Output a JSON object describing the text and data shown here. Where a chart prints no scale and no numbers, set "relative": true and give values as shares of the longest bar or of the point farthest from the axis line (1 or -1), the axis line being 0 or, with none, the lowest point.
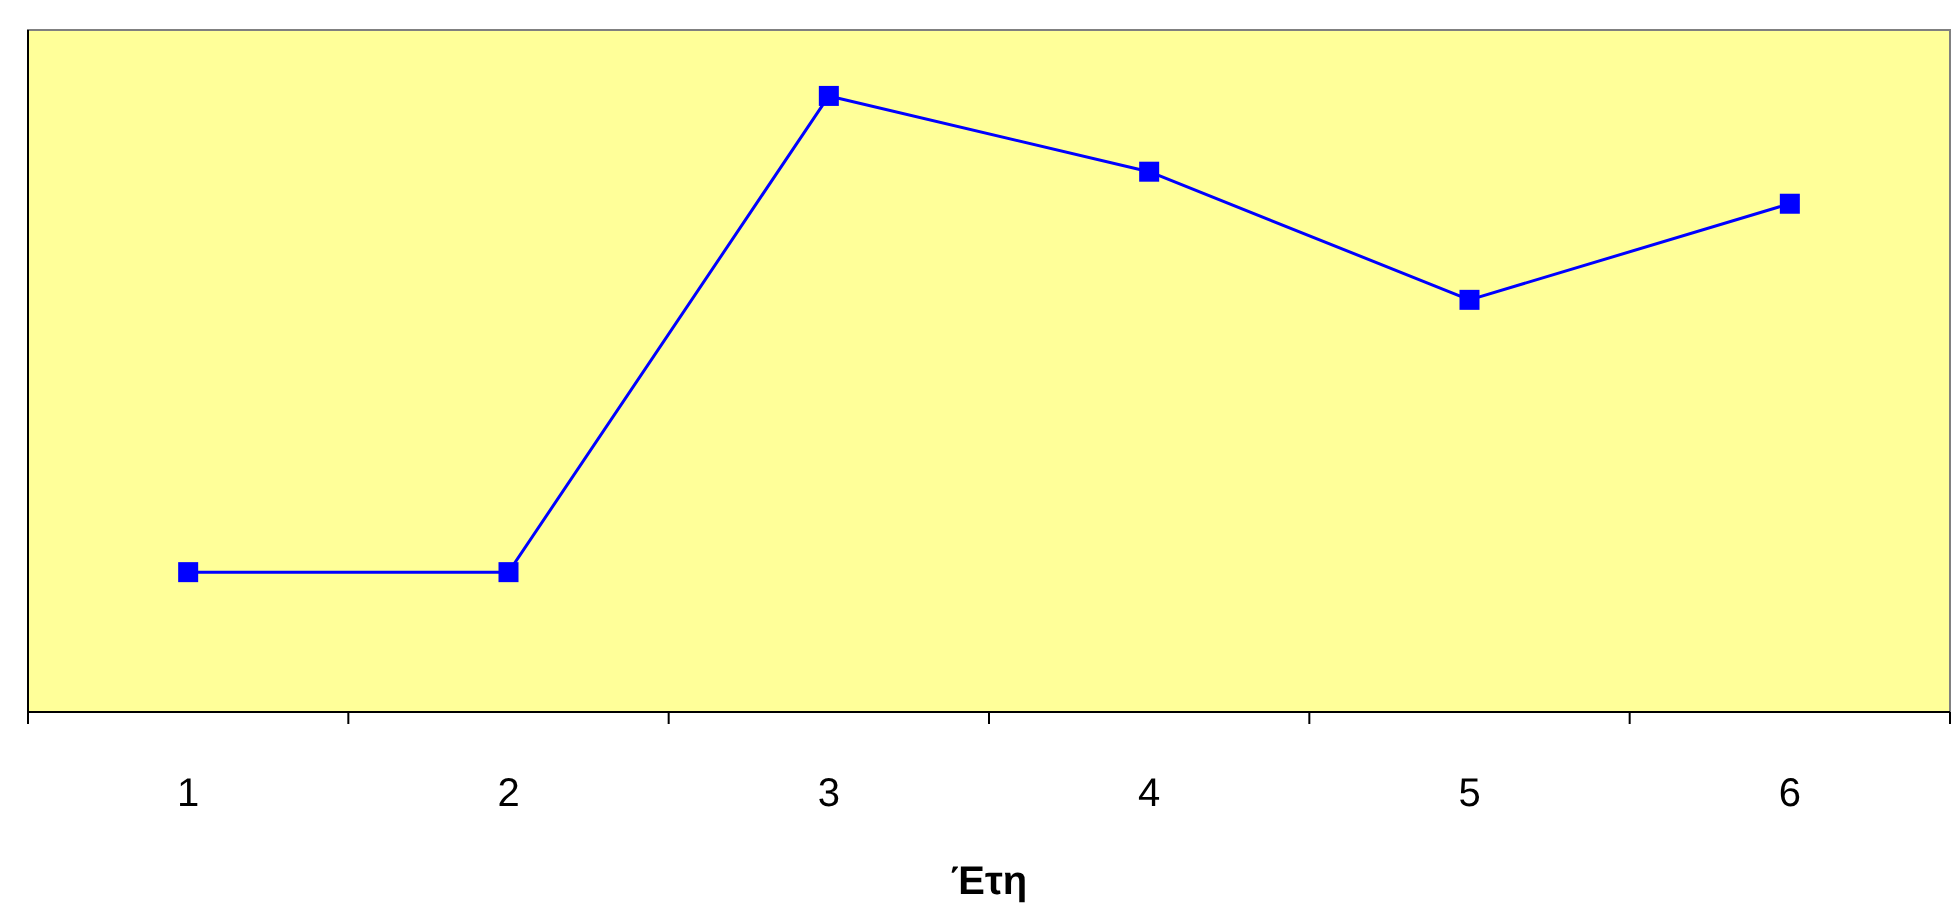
{
  "chart_data": {
    "type": "line",
    "xlabel": "Έτη",
    "categories": [
      "1",
      "2",
      "3",
      "4",
      "5",
      "6"
    ],
    "relative": true,
    "series": [
      {
        "color": "#0000ff",
        "values": [
          0.227,
          0.227,
          1,
          0.877,
          0.669,
          0.825
        ]
      }
    ],
    "marker": "square"
  }
}
